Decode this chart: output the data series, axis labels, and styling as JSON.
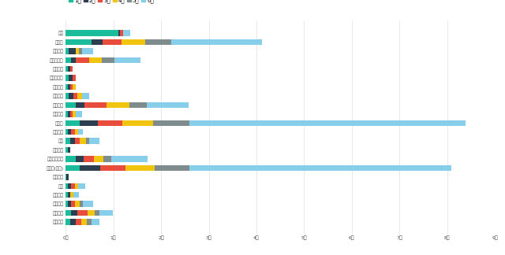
{
  "companies": [
    "沃汽",
    "比亚迪",
    "东风汽车",
    "广汽新能源",
    "海马汽车",
    "合众新能源",
    "华晨宝马",
    "远时汽车",
    "江淮汽车",
    "捷豹汽车",
    "特斯拉",
    "奇瑞汽车",
    "上汽",
    "上汽大众",
    "上汽通用五菱",
    "特斯拉(上海)",
    "成功汽车",
    "一汽",
    "一汽大众",
    "安徽汽车",
    "长城汽车",
    "郑州小鹏"
  ],
  "colors": [
    "#1abc9c",
    "#2c3e50",
    "#e74c3c",
    "#f1c40f",
    "#7f8c8d",
    "#87ceeb"
  ],
  "legend_labels": [
    "1月",
    "2月",
    "3月",
    "4月",
    "5月",
    "6月"
  ],
  "data": [
    [
      1.1,
      0.03,
      0.07,
      0.0,
      0.0,
      0.15
    ],
    [
      0.55,
      0.22,
      0.4,
      0.5,
      0.55,
      1.9
    ],
    [
      0.07,
      0.14,
      0.0,
      0.07,
      0.07,
      0.22
    ],
    [
      0.12,
      0.1,
      0.28,
      0.25,
      0.27,
      0.55
    ],
    [
      0.05,
      0.05,
      0.05,
      0.0,
      0.0,
      0.0
    ],
    [
      0.07,
      0.07,
      0.07,
      0.0,
      0.0,
      0.0
    ],
    [
      0.05,
      0.05,
      0.05,
      0.07,
      0.0,
      0.0
    ],
    [
      0.07,
      0.1,
      0.07,
      0.1,
      0.0,
      0.15
    ],
    [
      0.22,
      0.17,
      0.47,
      0.47,
      0.37,
      0.88
    ],
    [
      0.05,
      0.05,
      0.05,
      0.07,
      0.0,
      0.12
    ],
    [
      0.3,
      0.37,
      0.52,
      0.65,
      0.75,
      5.8
    ],
    [
      0.05,
      0.07,
      0.07,
      0.07,
      0.0,
      0.1
    ],
    [
      0.1,
      0.1,
      0.1,
      0.12,
      0.07,
      0.22
    ],
    [
      0.05,
      0.05,
      0.0,
      0.0,
      0.0,
      0.0
    ],
    [
      0.22,
      0.15,
      0.22,
      0.2,
      0.17,
      0.75
    ],
    [
      0.3,
      0.43,
      0.52,
      0.62,
      0.72,
      5.5
    ],
    [
      0.02,
      0.05,
      0.0,
      0.0,
      0.0,
      0.0
    ],
    [
      0.05,
      0.07,
      0.07,
      0.07,
      0.0,
      0.15
    ],
    [
      0.05,
      0.05,
      0.0,
      0.07,
      0.0,
      0.1
    ],
    [
      0.05,
      0.07,
      0.07,
      0.1,
      0.07,
      0.22
    ],
    [
      0.12,
      0.12,
      0.22,
      0.15,
      0.1,
      0.28
    ],
    [
      0.1,
      0.12,
      0.1,
      0.12,
      0.1,
      0.17
    ]
  ],
  "xlim": [
    0,
    9.0
  ],
  "xticks": [
    0,
    1,
    2,
    3,
    4,
    5,
    6,
    7,
    8,
    9
  ],
  "xtick_labels": [
    "0千",
    "1千",
    "2千",
    "3千",
    "4千",
    "5千",
    "6千",
    "7千",
    "8千",
    "9千"
  ],
  "background_color": "#ffffff",
  "bar_height": 0.65,
  "grid_color": "#e8e8e8"
}
